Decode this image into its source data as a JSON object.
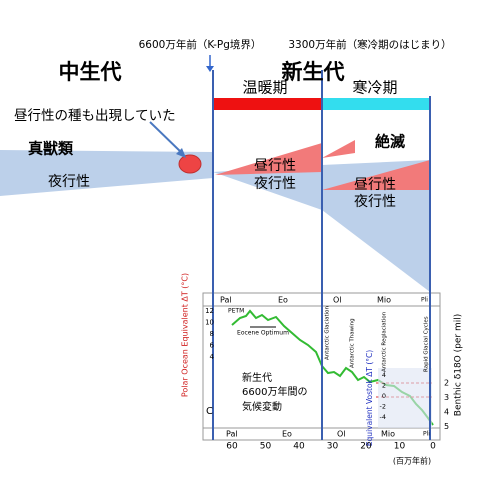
{
  "header": {
    "kpg_label": "6600万年前（K-Pg境界）",
    "cold_start_label": "3300万年前（寒冷期のはじまり）"
  },
  "eras": {
    "mesozoic": "中生代",
    "cenozoic": "新生代"
  },
  "periods": {
    "warm": "温暖期",
    "cold": "寒冷期"
  },
  "notes": {
    "diurnal_appeared": "昼行性の種も出現していた",
    "eutheria": "真獣類",
    "nocturnal_left": "夜行性",
    "diurnal_mid": "昼行性",
    "nocturnal_mid": "夜行性",
    "extinction": "絶滅",
    "diurnal_right": "昼行性",
    "nocturnal_right": "夜行性"
  },
  "inset": {
    "epochs": [
      "Pal",
      "Eo",
      "Ol",
      "Mio",
      "Pli"
    ],
    "events": {
      "petm": "PETM",
      "eocene_optimum": "Eocene Optimum",
      "glaciation": "Antarctic Glaciation",
      "thawing": "Antarctic Thawing",
      "reglaciation": "Antarctic Reglaciation",
      "glacial_cycles": "Rapid Glacial Cycles"
    },
    "left_axis_label": "Polar Ocean Equivalent ΔT (°C)",
    "left_ticks": [
      "12",
      "10",
      "8",
      "6",
      "4"
    ],
    "right_axis_label": "Benthic δ18O (per mil)",
    "right_ticks": [
      "2",
      "3",
      "4",
      "5"
    ],
    "vostok_axis_label": "Equivalent Vostok ΔT (°C)",
    "vostok_ticks": [
      "4",
      "2",
      "0",
      "-2",
      "-4"
    ],
    "x_ticks": [
      "60",
      "50",
      "40",
      "30",
      "20",
      "10",
      "0"
    ],
    "x_unit": "(百万年前)",
    "caption": [
      "新生代",
      "6600万年間の",
      "気候変動"
    ],
    "corner_letter": "C"
  }
}
